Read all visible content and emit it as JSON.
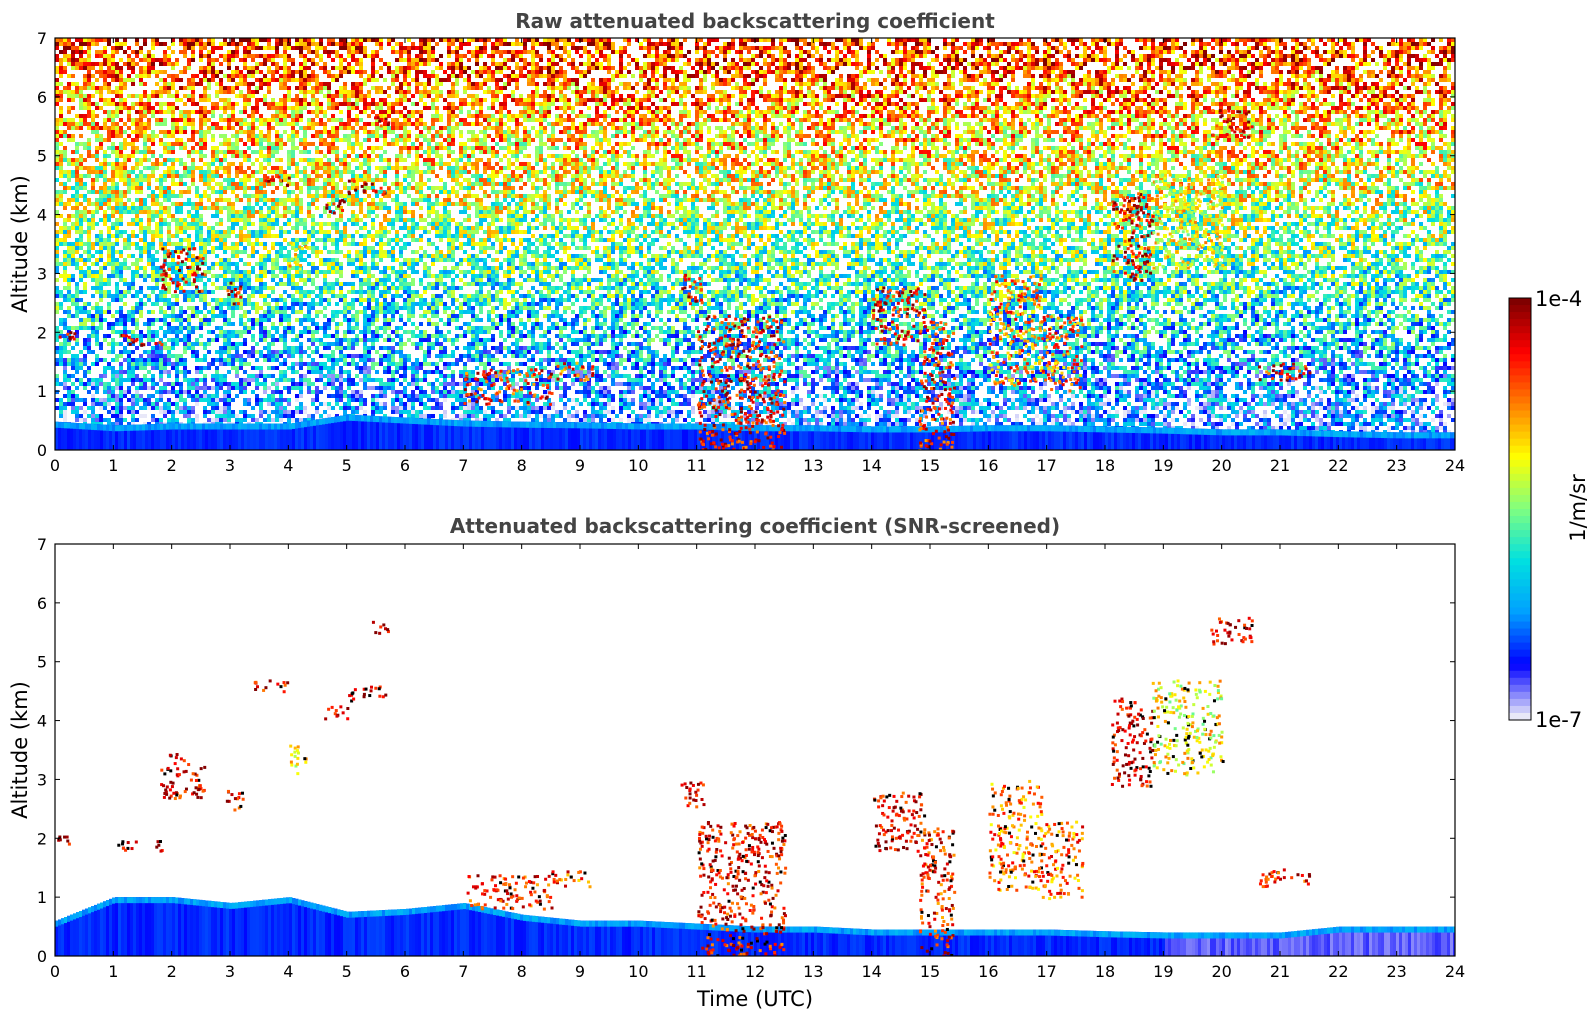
{
  "chart_data": [
    {
      "type": "heatmap",
      "title": "Raw attenuated backscattering coefficient",
      "xlabel": "",
      "ylabel": "Altitude (km)",
      "xlim": [
        0,
        24
      ],
      "ylim": [
        0,
        7
      ],
      "xticks": [
        "0",
        "1",
        "2",
        "3",
        "4",
        "5",
        "6",
        "7",
        "8",
        "9",
        "10",
        "11",
        "12",
        "13",
        "14",
        "15",
        "16",
        "17",
        "18",
        "19",
        "20",
        "21",
        "22",
        "23",
        "24"
      ],
      "yticks": [
        "0",
        "1",
        "2",
        "3",
        "4",
        "5",
        "6",
        "7"
      ],
      "grid": false,
      "features": {
        "boundary_layer": [
          [
            0,
            0.48
          ],
          [
            1,
            0.42
          ],
          [
            2,
            0.45
          ],
          [
            3,
            0.45
          ],
          [
            4,
            0.45
          ],
          [
            5,
            0.6
          ],
          [
            6,
            0.55
          ],
          [
            7,
            0.5
          ],
          [
            8,
            0.48
          ],
          [
            9,
            0.47
          ],
          [
            10,
            0.45
          ],
          [
            11,
            0.45
          ],
          [
            12,
            0.42
          ],
          [
            13,
            0.42
          ],
          [
            14,
            0.4
          ],
          [
            15,
            0.4
          ],
          [
            16,
            0.42
          ],
          [
            17,
            0.42
          ],
          [
            18,
            0.4
          ],
          [
            19,
            0.38
          ],
          [
            20,
            0.35
          ],
          [
            21,
            0.35
          ],
          [
            22,
            0.32
          ],
          [
            23,
            0.3
          ],
          [
            24,
            0.3
          ]
        ],
        "clouds": [
          {
            "t0": 0.0,
            "t1": 0.35,
            "z0": 1.9,
            "z1": 2.05,
            "level": 0.95
          },
          {
            "t0": 1.05,
            "t1": 1.85,
            "z0": 1.8,
            "z1": 1.98,
            "level": 0.95
          },
          {
            "t0": 1.8,
            "t1": 2.55,
            "z0": 2.7,
            "z1": 3.45,
            "level": 0.9
          },
          {
            "t0": 2.9,
            "t1": 3.2,
            "z0": 2.5,
            "z1": 2.9,
            "level": 0.9
          },
          {
            "t0": 3.4,
            "t1": 4.0,
            "z0": 4.5,
            "z1": 4.7,
            "level": 0.9
          },
          {
            "t0": 4.0,
            "t1": 4.3,
            "z0": 3.1,
            "z1": 3.6,
            "level": 0.65
          },
          {
            "t0": 4.6,
            "t1": 5.0,
            "z0": 4.05,
            "z1": 4.3,
            "level": 0.95
          },
          {
            "t0": 5.0,
            "t1": 5.7,
            "z0": 4.35,
            "z1": 4.6,
            "level": 0.95
          },
          {
            "t0": 5.4,
            "t1": 5.7,
            "z0": 5.5,
            "z1": 5.7,
            "level": 0.9
          },
          {
            "t0": 7.0,
            "t1": 8.5,
            "z0": 0.8,
            "z1": 1.4,
            "level": 0.85
          },
          {
            "t0": 8.5,
            "t1": 9.2,
            "z0": 1.2,
            "z1": 1.5,
            "level": 0.8
          },
          {
            "t0": 10.7,
            "t1": 11.1,
            "z0": 2.5,
            "z1": 3.0,
            "level": 0.9
          },
          {
            "t0": 11.0,
            "t1": 12.5,
            "z0": 0.0,
            "z1": 2.3,
            "level": 0.88
          },
          {
            "t0": 14.0,
            "t1": 14.9,
            "z0": 1.8,
            "z1": 2.8,
            "level": 0.9
          },
          {
            "t0": 14.8,
            "t1": 15.4,
            "z0": 0.0,
            "z1": 2.2,
            "level": 0.85
          },
          {
            "t0": 16.0,
            "t1": 16.9,
            "z0": 1.1,
            "z1": 3.0,
            "level": 0.75
          },
          {
            "t0": 16.9,
            "t1": 17.6,
            "z0": 1.0,
            "z1": 2.3,
            "level": 0.78
          },
          {
            "t0": 18.1,
            "t1": 18.8,
            "z0": 2.9,
            "z1": 4.4,
            "level": 0.92
          },
          {
            "t0": 18.8,
            "t1": 20.0,
            "z0": 3.1,
            "z1": 4.7,
            "level": 0.62
          },
          {
            "t0": 19.8,
            "t1": 20.5,
            "z0": 5.3,
            "z1": 5.8,
            "level": 0.9
          },
          {
            "t0": 20.6,
            "t1": 21.5,
            "z0": 1.2,
            "z1": 1.5,
            "level": 0.88
          }
        ]
      }
    },
    {
      "type": "heatmap",
      "title": "Attenuated backscattering coefficient (SNR-screened)",
      "xlabel": "Time (UTC)",
      "ylabel": "Altitude (km)",
      "xlim": [
        0,
        24
      ],
      "ylim": [
        0,
        7
      ],
      "xticks": [
        "0",
        "1",
        "2",
        "3",
        "4",
        "5",
        "6",
        "7",
        "8",
        "9",
        "10",
        "11",
        "12",
        "13",
        "14",
        "15",
        "16",
        "17",
        "18",
        "19",
        "20",
        "21",
        "22",
        "23",
        "24"
      ],
      "yticks": [
        "0",
        "1",
        "2",
        "3",
        "4",
        "5",
        "6",
        "7"
      ],
      "grid": false,
      "features": {
        "note_level_scale": "0 = 1e-7, 1 = 1e-4",
        "boundary_layer": [
          [
            0,
            0.6
          ],
          [
            1,
            1.0
          ],
          [
            2,
            1.0
          ],
          [
            3,
            0.9
          ],
          [
            4,
            1.0
          ],
          [
            5,
            0.75
          ],
          [
            6,
            0.8
          ],
          [
            7,
            0.9
          ],
          [
            8,
            0.7
          ],
          [
            9,
            0.6
          ],
          [
            10,
            0.6
          ],
          [
            11,
            0.55
          ],
          [
            12,
            0.5
          ],
          [
            13,
            0.5
          ],
          [
            14,
            0.45
          ],
          [
            15,
            0.45
          ],
          [
            16,
            0.45
          ],
          [
            17,
            0.45
          ],
          [
            18,
            0.42
          ],
          [
            19,
            0.4
          ],
          [
            20,
            0.4
          ],
          [
            21,
            0.4
          ],
          [
            22,
            0.5
          ],
          [
            23,
            0.5
          ],
          [
            24,
            0.5
          ]
        ]
      }
    }
  ],
  "colorbar": {
    "label": "1/m/sr",
    "max_label": "1e-4",
    "min_label": "1e-7",
    "colormap": "jet",
    "colors": [
      "#e8e8f8",
      "#0000ff",
      "#00a0ff",
      "#00e0e0",
      "#80ff80",
      "#ffff00",
      "#ff8000",
      "#ff0000",
      "#800000"
    ]
  }
}
